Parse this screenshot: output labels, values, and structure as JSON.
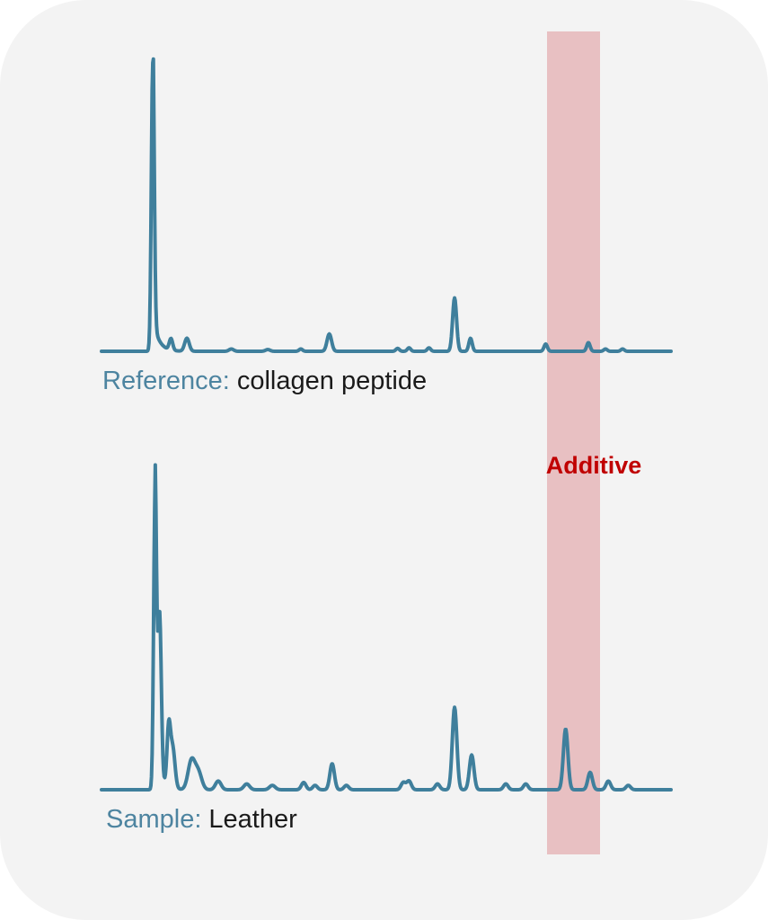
{
  "chart_data": [
    {
      "type": "line",
      "label_prefix": "Reference:",
      "label_value": "collagen peptide",
      "line_color": "#3f7f9c",
      "peaks": [
        {
          "x": 0.09,
          "h": 1.0,
          "w": 0.0025,
          "tail": 0.01
        },
        {
          "x": 0.122,
          "h": 0.04,
          "w": 0.003
        },
        {
          "x": 0.15,
          "h": 0.045,
          "w": 0.004
        },
        {
          "x": 0.228,
          "h": 0.008,
          "w": 0.004
        },
        {
          "x": 0.292,
          "h": 0.006,
          "w": 0.004
        },
        {
          "x": 0.35,
          "h": 0.008,
          "w": 0.003
        },
        {
          "x": 0.4,
          "h": 0.06,
          "w": 0.004
        },
        {
          "x": 0.52,
          "h": 0.01,
          "w": 0.003
        },
        {
          "x": 0.54,
          "h": 0.012,
          "w": 0.003
        },
        {
          "x": 0.575,
          "h": 0.012,
          "w": 0.003
        },
        {
          "x": 0.62,
          "h": 0.185,
          "w": 0.0035
        },
        {
          "x": 0.648,
          "h": 0.045,
          "w": 0.003
        },
        {
          "x": 0.78,
          "h": 0.025,
          "w": 0.003
        },
        {
          "x": 0.855,
          "h": 0.03,
          "w": 0.003
        },
        {
          "x": 0.885,
          "h": 0.008,
          "w": 0.003
        },
        {
          "x": 0.915,
          "h": 0.008,
          "w": 0.003
        }
      ]
    },
    {
      "type": "line",
      "label_prefix": "Sample:",
      "label_value": "Leather",
      "line_color": "#3f7f9c",
      "peaks": [
        {
          "x": 0.094,
          "h": 1.0,
          "w": 0.0025,
          "tail": 0.01
        },
        {
          "x": 0.102,
          "h": 0.56,
          "w": 0.003
        },
        {
          "x": 0.118,
          "h": 0.2,
          "w": 0.003
        },
        {
          "x": 0.125,
          "h": 0.14,
          "w": 0.004
        },
        {
          "x": 0.158,
          "h": 0.1,
          "w": 0.006
        },
        {
          "x": 0.17,
          "h": 0.06,
          "w": 0.006
        },
        {
          "x": 0.205,
          "h": 0.03,
          "w": 0.005
        },
        {
          "x": 0.255,
          "h": 0.02,
          "w": 0.005
        },
        {
          "x": 0.3,
          "h": 0.015,
          "w": 0.005
        },
        {
          "x": 0.355,
          "h": 0.025,
          "w": 0.004
        },
        {
          "x": 0.375,
          "h": 0.015,
          "w": 0.004
        },
        {
          "x": 0.405,
          "h": 0.09,
          "w": 0.004
        },
        {
          "x": 0.43,
          "h": 0.015,
          "w": 0.004
        },
        {
          "x": 0.53,
          "h": 0.025,
          "w": 0.004
        },
        {
          "x": 0.54,
          "h": 0.03,
          "w": 0.004
        },
        {
          "x": 0.59,
          "h": 0.02,
          "w": 0.004
        },
        {
          "x": 0.62,
          "h": 0.285,
          "w": 0.004
        },
        {
          "x": 0.65,
          "h": 0.12,
          "w": 0.004
        },
        {
          "x": 0.71,
          "h": 0.02,
          "w": 0.004
        },
        {
          "x": 0.745,
          "h": 0.02,
          "w": 0.004
        },
        {
          "x": 0.815,
          "h": 0.21,
          "w": 0.004
        },
        {
          "x": 0.858,
          "h": 0.06,
          "w": 0.004
        },
        {
          "x": 0.89,
          "h": 0.03,
          "w": 0.004
        },
        {
          "x": 0.925,
          "h": 0.015,
          "w": 0.004
        }
      ]
    }
  ],
  "highlight": {
    "label": "Additive",
    "color": "#e8c0c2",
    "label_color": "#c00000"
  }
}
